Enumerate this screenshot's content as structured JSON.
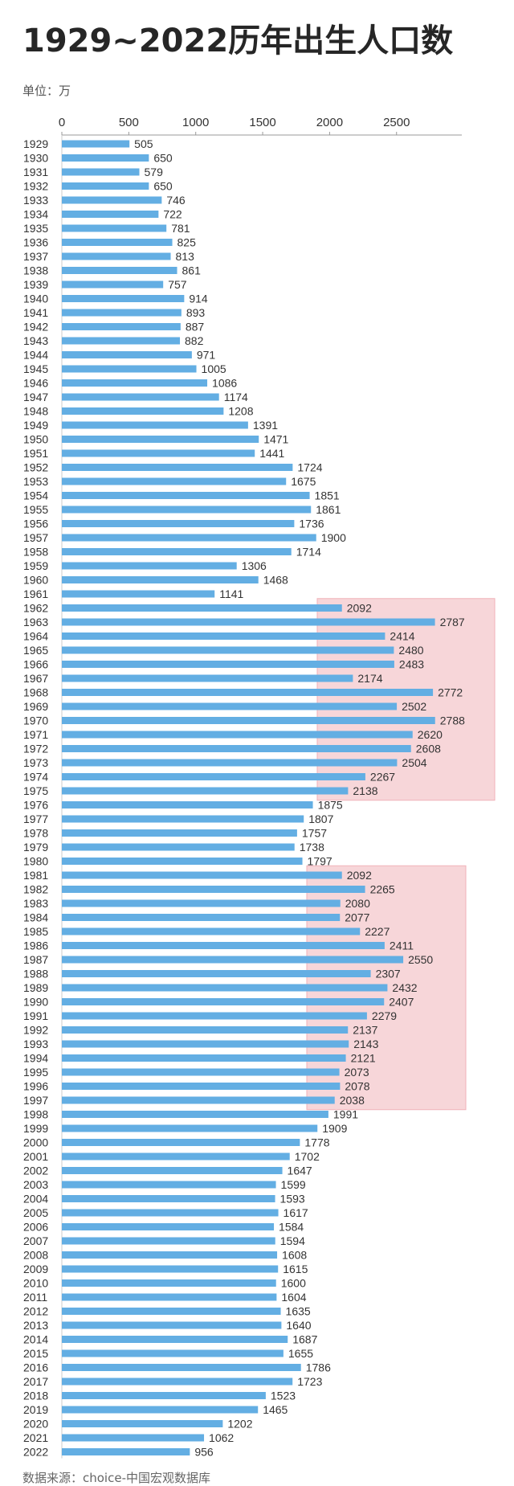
{
  "title": "1929~2022历年出生人口数",
  "unit_label": "单位：万",
  "source_label": "数据来源：choice-中国宏观数据库",
  "colors": {
    "bar": "#63aee3",
    "highlight_fill": "#f6cfd3",
    "highlight_stroke": "#eea5ad",
    "axis": "#999999"
  },
  "chart_data": {
    "type": "bar",
    "orientation": "horizontal",
    "title": "1929~2022历年出生人口数",
    "unit": "万",
    "xticks": [
      "0",
      "500",
      "1000",
      "1500",
      "2000",
      "2500"
    ],
    "xlim": [
      0,
      2900
    ],
    "categories": [
      "1929",
      "1930",
      "1931",
      "1932",
      "1933",
      "1934",
      "1935",
      "1936",
      "1937",
      "1938",
      "1939",
      "1940",
      "1941",
      "1942",
      "1943",
      "1944",
      "1945",
      "1946",
      "1947",
      "1948",
      "1949",
      "1950",
      "1951",
      "1952",
      "1953",
      "1954",
      "1955",
      "1956",
      "1957",
      "1958",
      "1959",
      "1960",
      "1961",
      "1962",
      "1963",
      "1964",
      "1965",
      "1966",
      "1967",
      "1968",
      "1969",
      "1970",
      "1971",
      "1972",
      "1973",
      "1974",
      "1975",
      "1976",
      "1977",
      "1978",
      "1979",
      "1980",
      "1981",
      "1982",
      "1983",
      "1984",
      "1985",
      "1986",
      "1987",
      "1988",
      "1989",
      "1990",
      "1991",
      "1992",
      "1993",
      "1994",
      "1995",
      "1996",
      "1997",
      "1998",
      "1999",
      "2000",
      "2001",
      "2002",
      "2003",
      "2004",
      "2005",
      "2006",
      "2007",
      "2008",
      "2009",
      "2010",
      "2011",
      "2012",
      "2013",
      "2014",
      "2015",
      "2016",
      "2017",
      "2018",
      "2019",
      "2020",
      "2021",
      "2022"
    ],
    "values": [
      505,
      650,
      579,
      650,
      746,
      722,
      781,
      825,
      813,
      861,
      757,
      914,
      893,
      887,
      882,
      971,
      1005,
      1086,
      1174,
      1208,
      1391,
      1471,
      1441,
      1724,
      1675,
      1851,
      1861,
      1736,
      1900,
      1714,
      1306,
      1468,
      1141,
      2092,
      2787,
      2414,
      2480,
      2483,
      2174,
      2772,
      2502,
      2788,
      2620,
      2608,
      2504,
      2267,
      2138,
      1875,
      1807,
      1757,
      1738,
      1797,
      2092,
      2265,
      2080,
      2077,
      2227,
      2411,
      2550,
      2307,
      2432,
      2407,
      2279,
      2137,
      2143,
      2121,
      2073,
      2078,
      2038,
      1991,
      1909,
      1778,
      1702,
      1647,
      1599,
      1593,
      1617,
      1584,
      1594,
      1608,
      1615,
      1600,
      1604,
      1635,
      1640,
      1687,
      1655,
      1786,
      1723,
      1523,
      1465,
      1202,
      1062,
      956
    ],
    "highlighted_ranges": [
      {
        "from": "1962",
        "to": "1975"
      },
      {
        "from": "1981",
        "to": "1997"
      }
    ],
    "grid": false,
    "legend": "none"
  }
}
